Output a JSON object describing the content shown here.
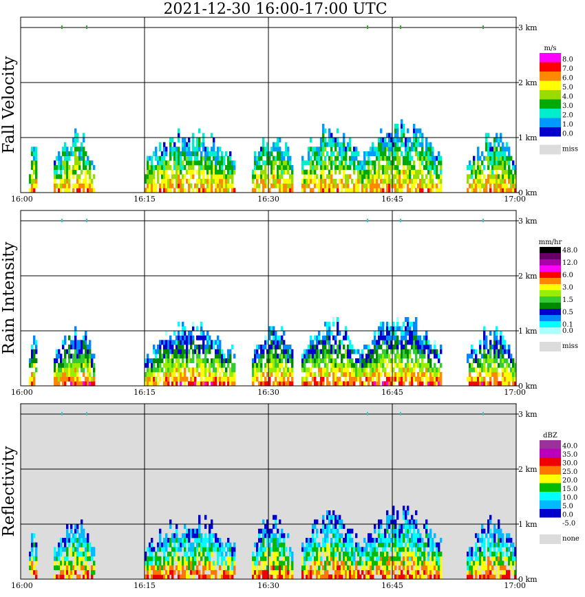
{
  "title": "2021-12-30   16:00-17:00 UTC",
  "x_ticks": [
    "16:00",
    "16:15",
    "16:30",
    "16:45",
    "17:00"
  ],
  "y_ticks": [
    "0 km",
    "1 km",
    "2 km",
    "3 km"
  ],
  "panels": [
    {
      "id": "fall",
      "title": "Fall Velocity",
      "unit": "m/s",
      "background": "#ffffff",
      "colorbar": [
        {
          "label": "8.0",
          "color": "#ff00ff"
        },
        {
          "label": "7.0",
          "color": "#ff0000"
        },
        {
          "label": "6.0",
          "color": "#ff8800"
        },
        {
          "label": "5.0",
          "color": "#ffff00"
        },
        {
          "label": "4.0",
          "color": "#99dd00"
        },
        {
          "label": "3.0",
          "color": "#00aa00"
        },
        {
          "label": "2.0",
          "color": "#00eecc"
        },
        {
          "label": "1.0",
          "color": "#0099ff"
        },
        {
          "label": "0.0",
          "color": "#0000cc"
        }
      ],
      "miss_label": "miss"
    },
    {
      "id": "rain",
      "title": "Rain Intensity",
      "unit": "mm/hr",
      "background": "#ffffff",
      "colorbar": [
        {
          "label": "48.0",
          "color": "#000000"
        },
        {
          "label": "",
          "color": "#660066"
        },
        {
          "label": "12.0",
          "color": "#aa00aa"
        },
        {
          "label": "",
          "color": "#ff00ff"
        },
        {
          "label": "6.0",
          "color": "#ff0000"
        },
        {
          "label": "",
          "color": "#ff8800"
        },
        {
          "label": "3.0",
          "color": "#ffff00"
        },
        {
          "label": "",
          "color": "#99ee00"
        },
        {
          "label": "1.5",
          "color": "#33cc33"
        },
        {
          "label": "",
          "color": "#008800"
        },
        {
          "label": "0.5",
          "color": "#0000cc"
        },
        {
          "label": "",
          "color": "#0088ff"
        },
        {
          "label": "0.1",
          "color": "#00ffff"
        },
        {
          "label": "0.0",
          "color": "#aaffff"
        }
      ],
      "miss_label": "miss"
    },
    {
      "id": "refl",
      "title": "Reflectivity",
      "unit": "dBZ",
      "background": "#dcdcdc",
      "colorbar": [
        {
          "label": "40.0",
          "color": "#993399"
        },
        {
          "label": "35.0",
          "color": "#bb00bb"
        },
        {
          "label": "30.0",
          "color": "#ee0000"
        },
        {
          "label": "25.0",
          "color": "#ff7700"
        },
        {
          "label": "20.0",
          "color": "#ffff00"
        },
        {
          "label": "15.0",
          "color": "#00bb00"
        },
        {
          "label": "10.0",
          "color": "#00ffff"
        },
        {
          "label": "5.0",
          "color": "#00bbff"
        },
        {
          "label": "0.0",
          "color": "#0000cc"
        },
        {
          "label": "-5.0",
          "color": "#ffffff"
        }
      ],
      "miss_label": "none"
    }
  ],
  "chart_data": {
    "type": "heatmap",
    "title": "2021-12-30   16:00-17:00 UTC",
    "xlabel": "",
    "ylabel": "",
    "x_range": [
      "16:00",
      "17:00"
    ],
    "y_range_km": [
      0,
      3.5
    ],
    "grid": true,
    "series": [
      {
        "name": "Fall Velocity",
        "unit": "m/s",
        "range": [
          0,
          8
        ]
      },
      {
        "name": "Rain Intensity",
        "unit": "mm/hr",
        "range": [
          0,
          48
        ]
      },
      {
        "name": "Reflectivity",
        "unit": "dBZ",
        "range": [
          -5,
          40
        ]
      }
    ],
    "echo_columns": [
      {
        "start": "16:01",
        "end": "16:02",
        "top_km": 1.0
      },
      {
        "start": "16:04",
        "end": "16:09",
        "top_km": 1.15
      },
      {
        "start": "16:15",
        "end": "16:26",
        "top_km": 1.2
      },
      {
        "start": "16:28",
        "end": "16:33",
        "top_km": 1.2
      },
      {
        "start": "16:34",
        "end": "16:41",
        "top_km": 1.3
      },
      {
        "start": "16:41",
        "end": "16:51",
        "top_km": 1.35
      },
      {
        "start": "16:54",
        "end": "17:00",
        "top_km": 1.15
      }
    ]
  }
}
